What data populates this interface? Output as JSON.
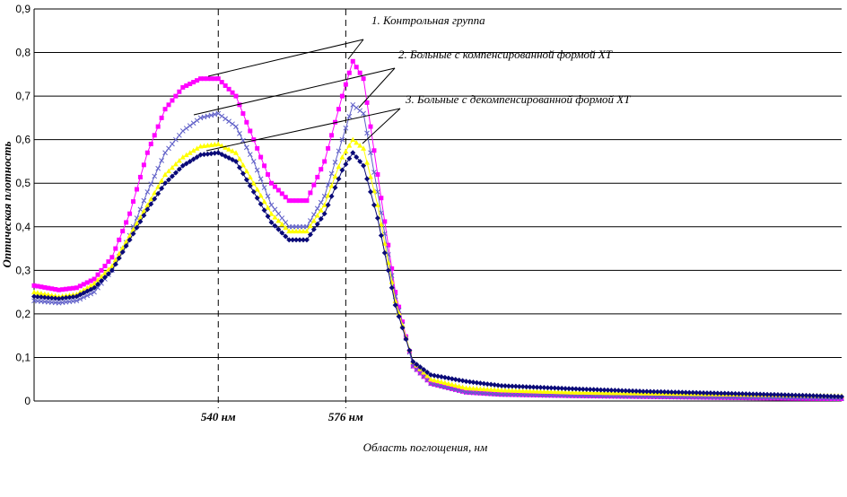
{
  "chart_data": {
    "type": "scatter",
    "title": "",
    "xlabel": "Область поглощения, нм",
    "ylabel": "Оптическая плотность",
    "xlim": [
      488,
      716
    ],
    "ylim": [
      0,
      0.9
    ],
    "yticks": [
      "0",
      "0,1",
      "0,2",
      "0,3",
      "0,4",
      "0,5",
      "0,6",
      "0,7",
      "0,8",
      "0,9"
    ],
    "xtick_labels": [
      {
        "x": 540,
        "label": "540 нм"
      },
      {
        "x": 576,
        "label": "576 нм"
      }
    ],
    "grid": "horizontal",
    "reference_lines_x": [
      540,
      576
    ],
    "annotations": [
      {
        "text": "1. Контрольная группа"
      },
      {
        "text": "2. Больные с компенсированной формой ХТ"
      },
      {
        "text": "3. Больные с декомпенсированной формой ХТ"
      }
    ],
    "series": [
      {
        "color": "#FF00FF",
        "marker": "square",
        "x": [
          488,
          495,
          500,
          505,
          510,
          515,
          520,
          525,
          530,
          535,
          540,
          545,
          550,
          555,
          560,
          565,
          570,
          575,
          578,
          581,
          585,
          590,
          595,
          600,
          610,
          620,
          640,
          660,
          680,
          700,
          716
        ],
        "y": [
          0.265,
          0.255,
          0.26,
          0.28,
          0.33,
          0.43,
          0.57,
          0.67,
          0.72,
          0.74,
          0.74,
          0.7,
          0.6,
          0.5,
          0.46,
          0.46,
          0.55,
          0.7,
          0.78,
          0.74,
          0.52,
          0.25,
          0.08,
          0.04,
          0.02,
          0.015,
          0.012,
          0.01,
          0.008,
          0.006,
          0.005
        ]
      },
      {
        "color": "#6060C8",
        "marker": "x",
        "x": [
          488,
          495,
          500,
          505,
          510,
          515,
          520,
          525,
          530,
          535,
          540,
          545,
          550,
          555,
          560,
          565,
          570,
          575,
          578,
          581,
          585,
          590,
          595,
          600,
          610,
          620,
          640,
          660,
          680,
          700,
          716
        ],
        "y": [
          0.23,
          0.225,
          0.23,
          0.25,
          0.3,
          0.38,
          0.48,
          0.57,
          0.62,
          0.65,
          0.66,
          0.63,
          0.55,
          0.45,
          0.4,
          0.4,
          0.47,
          0.6,
          0.68,
          0.66,
          0.48,
          0.24,
          0.08,
          0.04,
          0.02,
          0.015,
          0.012,
          0.01,
          0.008,
          0.007,
          0.006
        ]
      },
      {
        "color": "#FFFF00",
        "marker": "triangle",
        "x": [
          488,
          495,
          500,
          505,
          510,
          515,
          520,
          525,
          530,
          535,
          540,
          545,
          550,
          555,
          560,
          565,
          570,
          575,
          578,
          581,
          585,
          590,
          595,
          600,
          610,
          620,
          640,
          660,
          680,
          700,
          716
        ],
        "y": [
          0.25,
          0.24,
          0.245,
          0.27,
          0.31,
          0.38,
          0.45,
          0.52,
          0.56,
          0.585,
          0.59,
          0.57,
          0.5,
          0.43,
          0.39,
          0.39,
          0.45,
          0.56,
          0.6,
          0.58,
          0.45,
          0.23,
          0.09,
          0.05,
          0.03,
          0.025,
          0.02,
          0.018,
          0.016,
          0.014,
          0.012
        ]
      },
      {
        "color": "#0A0A78",
        "marker": "diamond",
        "x": [
          488,
          495,
          500,
          505,
          510,
          515,
          520,
          525,
          530,
          535,
          540,
          545,
          550,
          555,
          560,
          565,
          570,
          575,
          578,
          581,
          585,
          590,
          595,
          600,
          610,
          620,
          640,
          660,
          680,
          700,
          716
        ],
        "y": [
          0.24,
          0.235,
          0.24,
          0.26,
          0.3,
          0.37,
          0.44,
          0.5,
          0.54,
          0.565,
          0.57,
          0.55,
          0.48,
          0.41,
          0.37,
          0.37,
          0.43,
          0.53,
          0.57,
          0.54,
          0.42,
          0.22,
          0.09,
          0.06,
          0.045,
          0.035,
          0.028,
          0.022,
          0.018,
          0.014,
          0.01
        ]
      }
    ]
  }
}
